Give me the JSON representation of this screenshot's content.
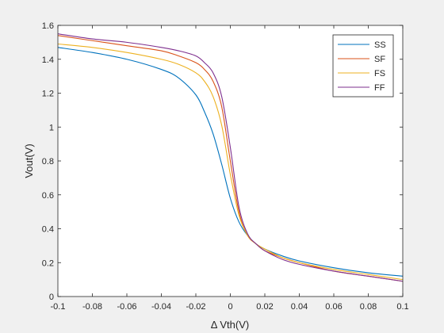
{
  "chart_data": {
    "type": "line",
    "xlabel": "Δ Vth(V)",
    "ylabel": "Vout(V)",
    "xlim": [
      -0.1,
      0.1
    ],
    "ylim": [
      0,
      1.6
    ],
    "xticks": [
      -0.1,
      -0.08,
      -0.06,
      -0.04,
      -0.02,
      0,
      0.02,
      0.04,
      0.06,
      0.08,
      0.1
    ],
    "xtick_labels": [
      "-0.1",
      "-0.08",
      "-0.06",
      "-0.04",
      "-0.02",
      "0",
      "0.02",
      "0.04",
      "0.06",
      "0.08",
      "0.1"
    ],
    "yticks": [
      0,
      0.2,
      0.4,
      0.6,
      0.8,
      1,
      1.2,
      1.4,
      1.6
    ],
    "ytick_labels": [
      "0",
      "0.2",
      "0.4",
      "0.6",
      "0.8",
      "1",
      "1.2",
      "1.4",
      "1.6"
    ],
    "grid": false,
    "legend_position": "top-right",
    "x": [
      -0.1,
      -0.08,
      -0.06,
      -0.04,
      -0.03,
      -0.02,
      -0.015,
      -0.01,
      -0.005,
      0,
      0.005,
      0.01,
      0.015,
      0.02,
      0.03,
      0.04,
      0.06,
      0.08,
      0.1
    ],
    "series": [
      {
        "name": "SS",
        "color": "#0072BD",
        "values": [
          1.47,
          1.44,
          1.4,
          1.34,
          1.29,
          1.19,
          1.09,
          0.96,
          0.78,
          0.58,
          0.44,
          0.36,
          0.31,
          0.28,
          0.24,
          0.21,
          0.17,
          0.14,
          0.12
        ]
      },
      {
        "name": "SF",
        "color": "#D95319",
        "values": [
          1.54,
          1.51,
          1.48,
          1.45,
          1.42,
          1.38,
          1.34,
          1.27,
          1.12,
          0.8,
          0.5,
          0.36,
          0.31,
          0.27,
          0.23,
          0.2,
          0.15,
          0.12,
          0.09
        ]
      },
      {
        "name": "FS",
        "color": "#EDB120",
        "values": [
          1.49,
          1.47,
          1.44,
          1.4,
          1.37,
          1.32,
          1.27,
          1.18,
          1.01,
          0.72,
          0.48,
          0.36,
          0.31,
          0.28,
          0.23,
          0.2,
          0.16,
          0.13,
          0.1
        ]
      },
      {
        "name": "FF",
        "color": "#7E2F8E",
        "values": [
          1.55,
          1.52,
          1.5,
          1.47,
          1.45,
          1.42,
          1.38,
          1.32,
          1.18,
          0.88,
          0.53,
          0.37,
          0.31,
          0.27,
          0.22,
          0.19,
          0.15,
          0.12,
          0.09
        ]
      }
    ]
  }
}
